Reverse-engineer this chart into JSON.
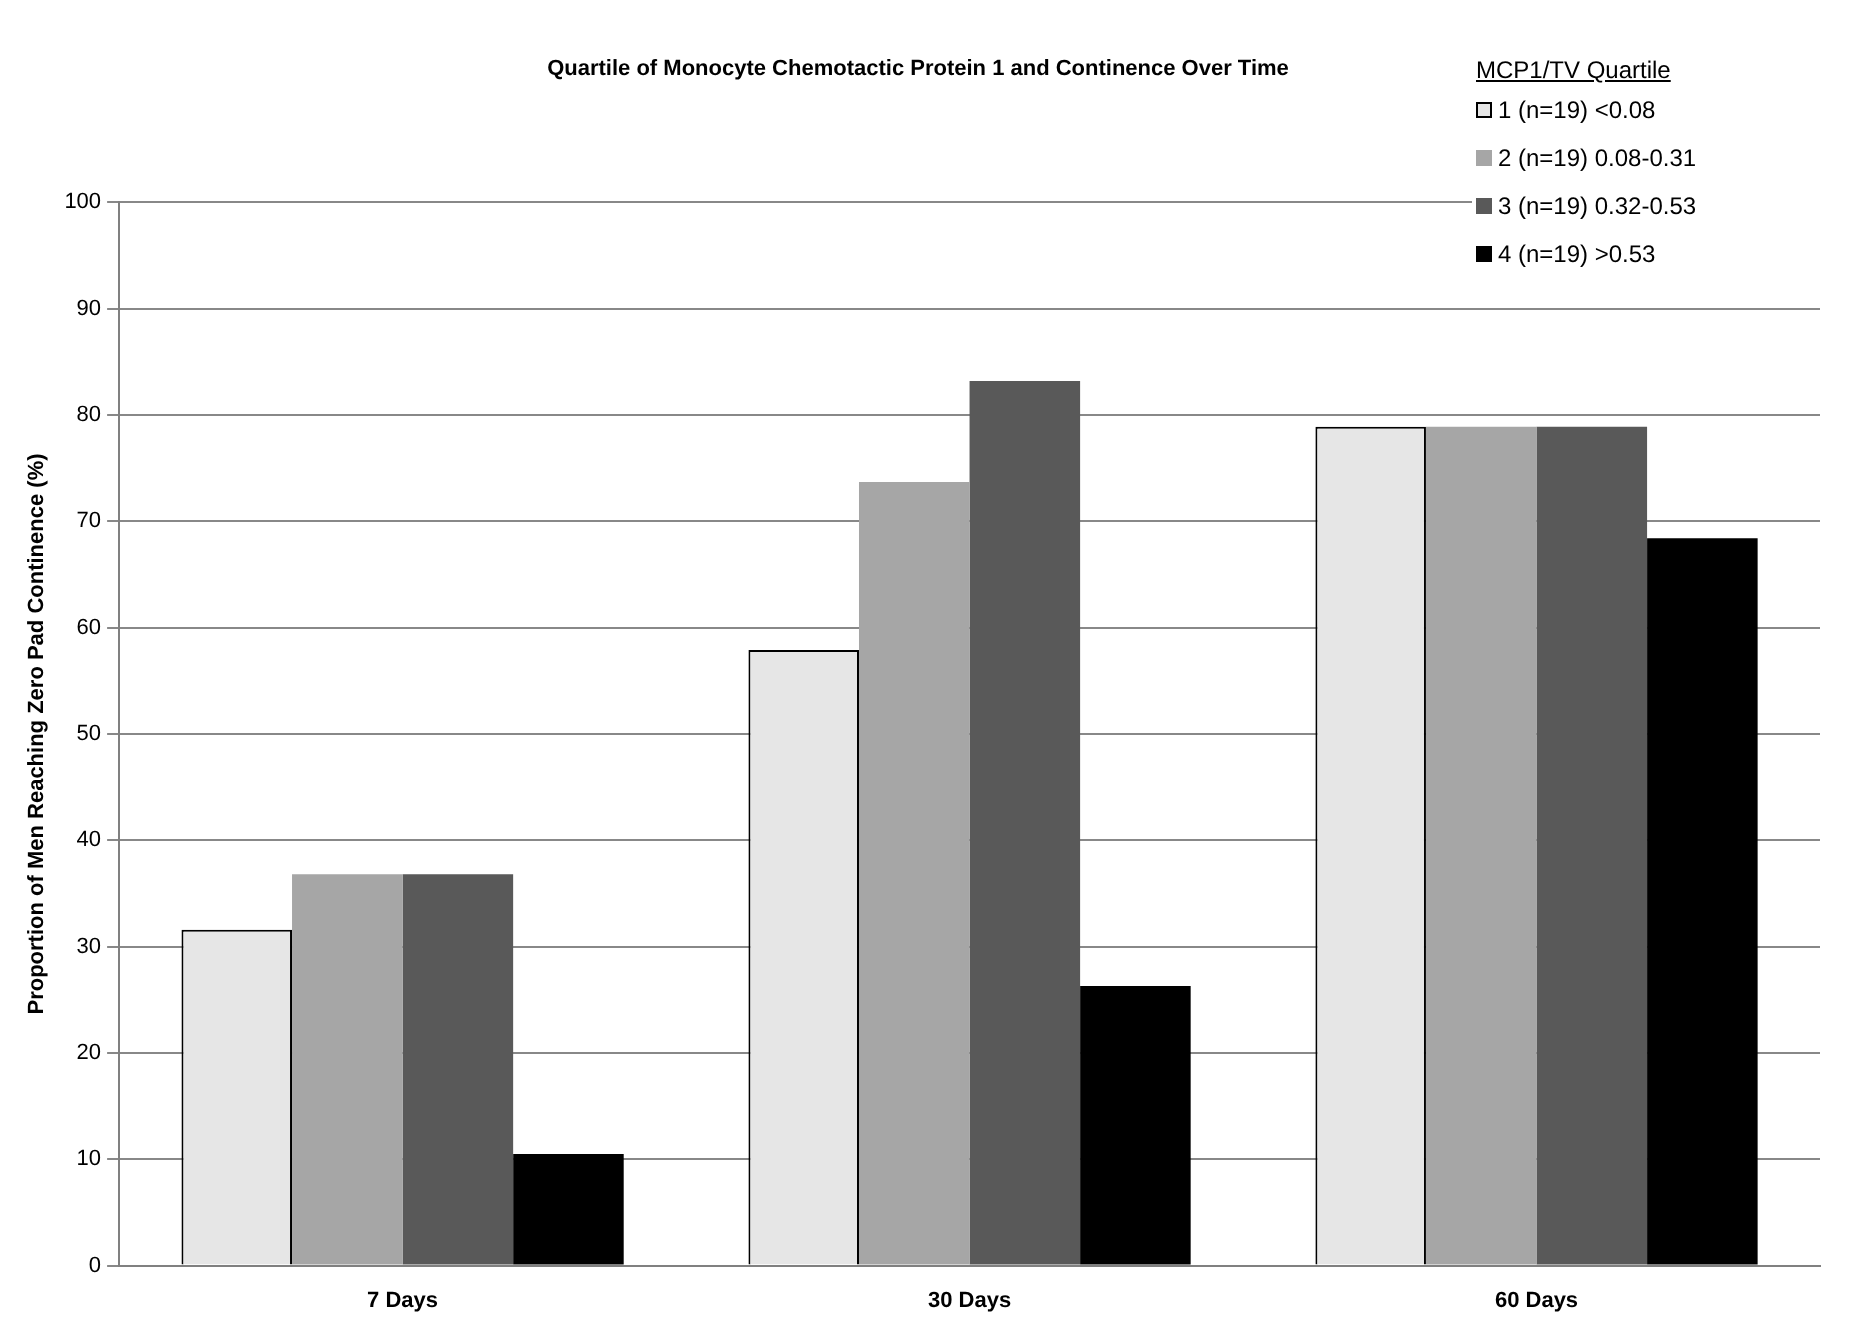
{
  "chart_data": {
    "type": "bar",
    "title": "Quartile of Monocyte Chemotactic Protein 1 and Continence Over Time",
    "ylabel": "Proportion of Men Reaching Zero Pad Continence (%)",
    "categories": [
      "7 Days",
      "30 Days",
      "60 Days"
    ],
    "series": [
      {
        "name": "1 (n=19) <0.08",
        "color": "#e6e6e6",
        "values": [
          31.6,
          57.9,
          78.9
        ]
      },
      {
        "name": "2 (n=19) 0.08-0.31",
        "color": "#a6a6a6",
        "values": [
          36.8,
          73.7,
          78.9
        ]
      },
      {
        "name": "3 (n=19) 0.32-0.53",
        "color": "#595959",
        "values": [
          36.8,
          83.2,
          78.9
        ]
      },
      {
        "name": "4 (n=19) >0.53",
        "color": "#000000",
        "values": [
          10.5,
          26.3,
          68.4
        ]
      }
    ],
    "legend_title": "MCP1/TV Quartile",
    "legend": "top right",
    "ylim": [
      0,
      100
    ],
    "yticks": [
      0,
      10,
      20,
      30,
      40,
      50,
      60,
      70,
      80,
      90,
      100
    ],
    "grid": "y"
  }
}
